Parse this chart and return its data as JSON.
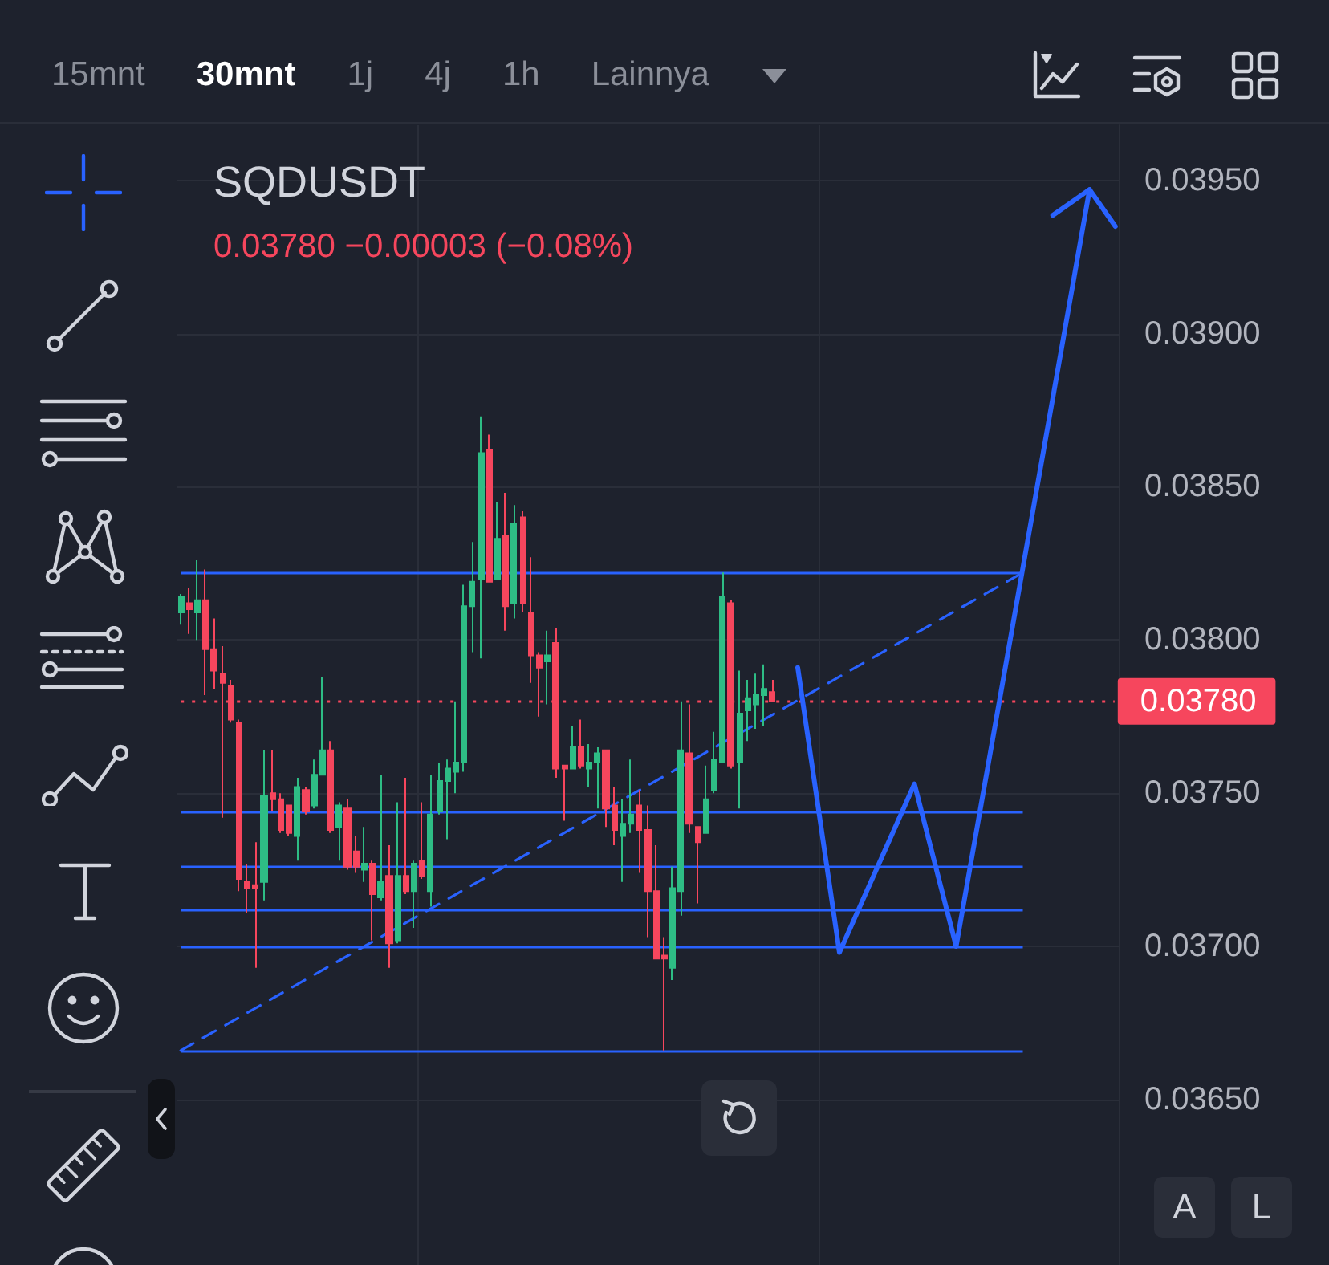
{
  "chart_data": {
    "type": "candlestick",
    "title": "SQDUSDT",
    "subtitle": "0.03780 −0.00003 (−0.08%)",
    "annotations": [
      "15mnt",
      "30mnt",
      "1j",
      "4j",
      "1h",
      "Lainnya",
      "A",
      "L"
    ],
    "categories": [
      null,
      null,
      null,
      null,
      null,
      null,
      null,
      null,
      null,
      null,
      null,
      null,
      null,
      null,
      null,
      null,
      null,
      null,
      null,
      null,
      null,
      null,
      null,
      null,
      null,
      null,
      null,
      null,
      null,
      null,
      null,
      null,
      null,
      null,
      null,
      null,
      null,
      null,
      null,
      null,
      null,
      null,
      null,
      null,
      null,
      null,
      null,
      null,
      null,
      null,
      null,
      null,
      null,
      null,
      null,
      null,
      null,
      null,
      null,
      null,
      null,
      null,
      null,
      null,
      null,
      null,
      null,
      null,
      null,
      null,
      null,
      null,
      null,
      null,
      null,
      null,
      null,
      null,
      null,
      null,
      null,
      null,
      null,
      null,
      null,
      null,
      null,
      null,
      null,
      null,
      null,
      null,
      null,
      null,
      null,
      null,
      null,
      null,
      null,
      null,
      null,
      null,
      null,
      null,
      null,
      null,
      null,
      null,
      null,
      null,
      null,
      null,
      null
    ],
    "ohlc": [
      [
        0.03809,
        0.03815,
        0.03805,
        0.03814
      ],
      [
        0.03812,
        0.03817,
        0.03802,
        0.0381
      ],
      [
        0.03809,
        0.03826,
        0.038,
        0.03813
      ],
      [
        0.03813,
        0.03823,
        0.03782,
        0.03797
      ],
      [
        0.03797,
        0.03807,
        0.03784,
        0.0379
      ],
      [
        0.03789,
        0.03798,
        0.03742,
        0.03786
      ],
      [
        0.03785,
        0.03787,
        0.03773,
        0.03774
      ],
      [
        0.03773,
        0.03774,
        0.03718,
        0.03722
      ],
      [
        0.03721,
        0.03727,
        0.03711,
        0.03719
      ],
      [
        0.0372,
        0.03734,
        0.03693,
        0.03719
      ],
      [
        0.03721,
        0.03764,
        0.03715,
        0.03749
      ],
      [
        0.0375,
        0.03764,
        0.03744,
        0.03748
      ],
      [
        0.03748,
        0.0375,
        0.03737,
        0.03738
      ],
      [
        0.03746,
        0.03746,
        0.03736,
        0.03737
      ],
      [
        0.03736,
        0.03755,
        0.03728,
        0.03752
      ],
      [
        0.03751,
        0.03752,
        0.03743,
        0.03744
      ],
      [
        0.03746,
        0.03761,
        0.03745,
        0.03756
      ],
      [
        0.03756,
        0.03788,
        0.03756,
        0.03764
      ],
      [
        0.03764,
        0.03767,
        0.03737,
        0.03738
      ],
      [
        0.03739,
        0.03747,
        0.03728,
        0.03746
      ],
      [
        0.03745,
        0.03748,
        0.03725,
        0.03726
      ],
      [
        0.03731,
        0.03736,
        0.03724,
        0.03726
      ],
      [
        0.03725,
        0.03739,
        0.03721,
        0.03727
      ],
      [
        0.03727,
        0.03728,
        0.03702,
        0.03717
      ],
      [
        0.03716,
        0.03756,
        0.03715,
        0.03721
      ],
      [
        0.03723,
        0.03733,
        0.03693,
        0.03701
      ],
      [
        0.03702,
        0.03747,
        0.03701,
        0.03723
      ],
      [
        0.03723,
        0.03755,
        0.03717,
        0.03718
      ],
      [
        0.03718,
        0.03728,
        0.03706,
        0.03727
      ],
      [
        0.03728,
        0.03747,
        0.03722,
        0.03723
      ],
      [
        0.03718,
        0.03756,
        0.03713,
        0.03743
      ],
      [
        0.03744,
        0.0376,
        0.03743,
        0.03754
      ],
      [
        0.03754,
        0.03761,
        0.03735,
        0.03758
      ],
      [
        0.03757,
        0.0378,
        0.0375,
        0.0376
      ],
      [
        0.0376,
        0.03818,
        0.03757,
        0.03811
      ],
      [
        0.03811,
        0.03832,
        0.03796,
        0.03819
      ],
      [
        0.0382,
        0.03873,
        0.03794,
        0.03861
      ],
      [
        0.03862,
        0.03867,
        0.03819,
        0.03819
      ],
      [
        0.0382,
        0.03845,
        0.0382,
        0.03833
      ],
      [
        0.03834,
        0.03848,
        0.03803,
        0.03811
      ],
      [
        0.03812,
        0.03844,
        0.03807,
        0.03838
      ],
      [
        0.0384,
        0.03842,
        0.03809,
        0.03812
      ],
      [
        0.03809,
        0.03827,
        0.03786,
        0.03795
      ],
      [
        0.03795,
        0.03796,
        0.03775,
        0.03791
      ],
      [
        0.03793,
        0.03803,
        0.03779,
        0.03795
      ],
      [
        0.03799,
        0.03804,
        0.03755,
        0.03758
      ],
      [
        0.03759,
        0.03759,
        0.03741,
        0.03758
      ],
      [
        0.03758,
        0.03772,
        0.03758,
        0.03765
      ],
      [
        0.03765,
        0.03774,
        0.03758,
        0.03759
      ],
      [
        0.03758,
        0.03766,
        0.03752,
        0.0376
      ],
      [
        0.0376,
        0.03765,
        0.03745,
        0.03763
      ],
      [
        0.03764,
        0.03764,
        0.03739,
        0.03745
      ],
      [
        0.03746,
        0.03752,
        0.03733,
        0.03738
      ],
      [
        0.03736,
        0.03748,
        0.03721,
        0.0374
      ],
      [
        0.0374,
        0.03761,
        0.03737,
        0.03743
      ],
      [
        0.03746,
        0.03751,
        0.03724,
        0.03738
      ],
      [
        0.03738,
        0.03746,
        0.03703,
        0.03718
      ],
      [
        0.03718,
        0.03733,
        0.03696,
        0.03696
      ],
      [
        0.03697,
        0.03703,
        0.03666,
        0.03696
      ],
      [
        0.03693,
        0.03726,
        0.03689,
        0.03719
      ],
      [
        0.03718,
        0.0378,
        0.0371,
        0.03764
      ],
      [
        0.03763,
        0.03779,
        0.03737,
        0.0374
      ],
      [
        0.03739,
        0.03739,
        0.03714,
        0.03734
      ],
      [
        0.03737,
        0.03759,
        0.03737,
        0.03748
      ],
      [
        0.03751,
        0.0377,
        0.0375,
        0.03761
      ],
      [
        0.0376,
        0.03822,
        0.0376,
        0.03814
      ],
      [
        0.03812,
        0.03813,
        0.03758,
        0.03759
      ],
      [
        0.0376,
        0.0379,
        0.03745,
        0.03776
      ],
      [
        0.03777,
        0.03787,
        0.03767,
        0.03781
      ],
      [
        0.03779,
        0.03789,
        0.03771,
        0.03782
      ],
      [
        0.03782,
        0.03792,
        0.03772,
        0.03784
      ],
      [
        0.03783,
        0.03787,
        0.0378,
        0.0378
      ],
      null,
      null,
      null,
      null,
      null,
      null,
      null,
      null,
      null,
      null,
      null,
      null,
      null,
      null,
      null,
      null,
      null,
      null,
      null,
      null,
      null,
      null,
      null,
      null,
      null,
      null,
      null,
      null,
      null,
      null,
      null,
      null,
      null,
      null,
      null,
      null,
      null,
      null,
      null,
      null,
      null
    ],
    "series": [
      {
        "type": "line",
        "color": "#2962ff",
        "line_style": "dashed",
        "values": [
          0.03666,
          null,
          null,
          null,
          null,
          null,
          null,
          null,
          null,
          null,
          null,
          null,
          null,
          null,
          null,
          null,
          null,
          null,
          null,
          null,
          null,
          null,
          null,
          null,
          null,
          null,
          null,
          null,
          null,
          null,
          null,
          null,
          null,
          null,
          null,
          null,
          null,
          null,
          null,
          null,
          null,
          null,
          null,
          null,
          null,
          null,
          null,
          null,
          null,
          null,
          null,
          null,
          null,
          null,
          null,
          null,
          null,
          null,
          null,
          null,
          null,
          null,
          null,
          null,
          null,
          null,
          null,
          null,
          null,
          null,
          null,
          null,
          null,
          null,
          null,
          null,
          null,
          null,
          null,
          null,
          null,
          null,
          null,
          null,
          null,
          null,
          null,
          null,
          null,
          null,
          null,
          null,
          null,
          null,
          null,
          null,
          null,
          null,
          null,
          null,
          null,
          0.03822,
          null,
          null,
          null,
          null,
          null,
          null,
          null,
          null,
          null,
          null,
          null
        ]
      },
      {
        "type": "line",
        "color": "#2962ff",
        "line_style": "solid",
        "values": [
          null,
          null,
          null,
          null,
          null,
          null,
          null,
          null,
          null,
          null,
          null,
          null,
          null,
          null,
          null,
          null,
          null,
          null,
          null,
          null,
          null,
          null,
          null,
          null,
          null,
          null,
          null,
          null,
          null,
          null,
          null,
          null,
          null,
          null,
          null,
          null,
          null,
          null,
          null,
          null,
          null,
          null,
          null,
          null,
          null,
          null,
          null,
          null,
          null,
          null,
          null,
          null,
          null,
          null,
          null,
          null,
          null,
          null,
          null,
          null,
          null,
          null,
          null,
          null,
          null,
          null,
          null,
          null,
          null,
          null,
          null,
          null,
          null,
          null,
          0.03791,
          null,
          null,
          null,
          null,
          0.03698,
          null,
          null,
          null,
          null,
          null,
          null,
          null,
          null,
          0.03753,
          null,
          null,
          null,
          null,
          0.037,
          null,
          null,
          null,
          null,
          null,
          null,
          null,
          null,
          null,
          null,
          null,
          null,
          null,
          null,
          null,
          0.03947,
          null,
          null,
          null
        ]
      }
    ],
    "ylim": [
      0.03596,
      0.03968
    ],
    "yticks": [
      {
        "value": 0.0365,
        "label": "0.03650"
      },
      {
        "value": 0.037,
        "label": "0.03700"
      },
      {
        "value": 0.0375,
        "label": "0.03750"
      },
      {
        "value": 0.038,
        "label": "0.03800"
      },
      {
        "value": 0.0385,
        "label": "0.03850"
      },
      {
        "value": 0.039,
        "label": "0.03900"
      },
      {
        "value": 0.0395,
        "label": "0.03950"
      }
    ],
    "ref_lines": [
      {
        "axis": "y",
        "value": 0.03822,
        "color": "#2962ff"
      },
      {
        "axis": "y",
        "value": 0.03744,
        "color": "#2962ff"
      },
      {
        "axis": "y",
        "value": 0.03726,
        "color": "#2962ff"
      },
      {
        "axis": "y",
        "value": 0.03712,
        "color": "#2962ff"
      },
      {
        "axis": "y",
        "value": 0.037,
        "color": "#2962ff"
      },
      {
        "axis": "y",
        "value": 0.03666,
        "color": "#2962ff"
      },
      {
        "axis": "y",
        "value": 0.0378,
        "label": "0.03780",
        "color": "#f6465d",
        "line_style": "dotted"
      }
    ],
    "grid": true,
    "tick_labels": "y"
  }
}
